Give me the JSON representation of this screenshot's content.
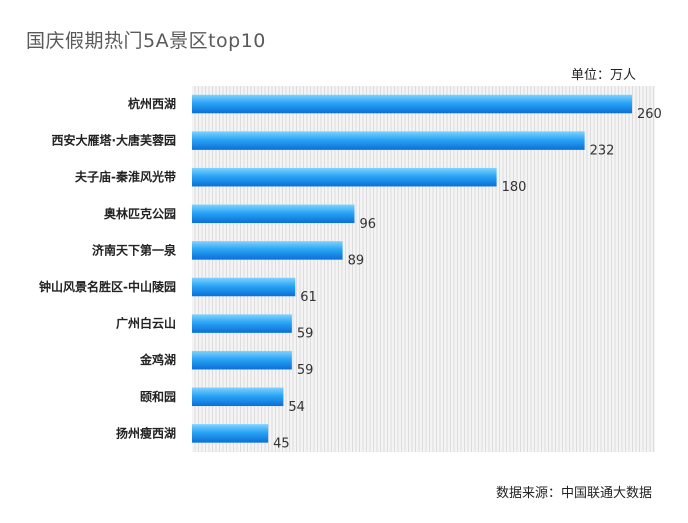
{
  "chart_data": {
    "type": "bar",
    "orientation": "horizontal",
    "title": "国庆假期热门5A景区top10",
    "unit": "单位：万人",
    "source": "数据来源：中国联通大数据",
    "categories": [
      "杭州西湖",
      "西安大雁塔·大唐芙蓉园",
      "夫子庙-秦淮风光带",
      "奥林匹克公园",
      "济南天下第一泉",
      "钟山风景名胜区-中山陵园",
      "广州白云山",
      "金鸡湖",
      "颐和园",
      "扬州瘦西湖"
    ],
    "values": [
      260,
      232,
      180,
      96,
      89,
      61,
      59,
      59,
      54,
      45
    ],
    "xlim": [
      0,
      260
    ],
    "grid": true,
    "bar_color": "#1e90ff"
  }
}
